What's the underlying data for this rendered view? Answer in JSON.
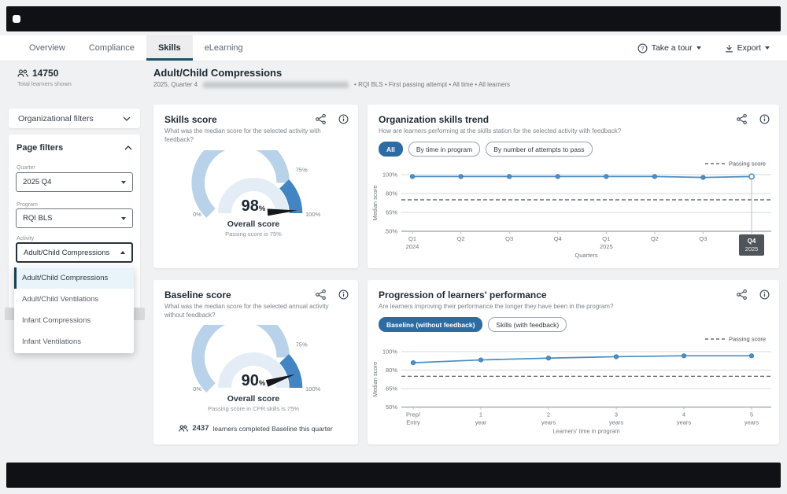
{
  "nav": {
    "tabs": [
      "Overview",
      "Compliance",
      "Skills",
      "eLearning"
    ],
    "active_tab": "Skills",
    "tour_label": "Take a tour",
    "export_label": "Export"
  },
  "stats": {
    "learners_count": "14750",
    "learners_label": "Total learners shown"
  },
  "sidebar": {
    "org_filters_label": "Organizational filters",
    "page_filters": {
      "title": "Page filters",
      "quarter": {
        "label": "Quarter",
        "value": "2025 Q4"
      },
      "program": {
        "label": "Program",
        "value": "RQI BLS"
      },
      "activity": {
        "label": "Activity",
        "value": "Adult/Child Compressions",
        "options": [
          "Adult/Child Compressions",
          "Adult/Child Ventilations",
          "Infant Compressions",
          "Infant Ventilations"
        ],
        "selected_option": "Adult/Child Compressions"
      }
    }
  },
  "header": {
    "title": "Adult/Child Compressions",
    "subtitle_prefix": "2025, Quarter 4",
    "subtitle_suffix": "• RQI BLS • First passing attempt • All time • All learners"
  },
  "cards": {
    "skills_score": {
      "title": "Skills score",
      "subtitle": "What was the median score for the selected activity with feedback?"
    },
    "org_trend": {
      "title": "Organization skills trend",
      "subtitle": "How are learners performing at the skills station for the selected activity with feedback?",
      "pills": [
        "All",
        "By time in program",
        "By number of attempts to pass"
      ],
      "active_pill": "All"
    },
    "baseline_score": {
      "title": "Baseline score",
      "subtitle": "What was the median score for the selected annual activity without feedback?",
      "footnote_count": "2437",
      "footnote_text": "learners completed Baseline this quarter"
    },
    "progression": {
      "title": "Progression of learners' performance",
      "subtitle": "Are learners improving their performance the longer they have been in the program?",
      "pills": [
        "Baseline (without feedback)",
        "Skills (with feedback)"
      ],
      "active_pill": "Baseline (without feedback)"
    }
  },
  "chart_data": [
    {
      "id": "skills-gauge",
      "type": "gauge",
      "value": 98,
      "value_label": "98",
      "unit": "%",
      "min": 0,
      "max": 100,
      "passing": 75,
      "labels": {
        "min": "0%",
        "passing": "75%",
        "max": "100%"
      },
      "center_title": "Overall score",
      "note": "Passing score is 75%"
    },
    {
      "id": "org-trend",
      "type": "line",
      "title": "Organization skills trend",
      "x_categories": [
        [
          "Q1",
          "2024"
        ],
        [
          "Q2",
          ""
        ],
        [
          "Q3",
          ""
        ],
        [
          "Q4",
          ""
        ],
        [
          "Q1",
          "2025"
        ],
        [
          "Q2",
          ""
        ],
        [
          "Q3",
          ""
        ],
        [
          "Q4",
          "2025"
        ]
      ],
      "values": [
        98,
        98,
        98,
        98,
        98,
        98,
        97,
        98
      ],
      "y_ticks": [
        "100%",
        "80%",
        "65%",
        "50%"
      ],
      "y_tick_values": [
        100,
        80,
        65,
        50
      ],
      "passing_value": 75,
      "ylabel": "Median score",
      "xlabel": "Quarters",
      "legend": "Passing score",
      "highlight_last": true
    },
    {
      "id": "baseline-gauge",
      "type": "gauge",
      "value": 90,
      "value_label": "90",
      "unit": "%",
      "min": 0,
      "max": 100,
      "passing": 75,
      "labels": {
        "min": "0%",
        "passing": "75%",
        "max": "100%"
      },
      "center_title": "Overall score",
      "note": "Passing score in CPR skills is 75%"
    },
    {
      "id": "progression",
      "type": "line",
      "title": "Progression of learners' performance",
      "x_categories": [
        [
          "Prep/",
          "Entry"
        ],
        [
          "1",
          "year"
        ],
        [
          "2",
          "years"
        ],
        [
          "3",
          "years"
        ],
        [
          "4",
          "years"
        ],
        [
          "5",
          "years"
        ]
      ],
      "values": [
        88,
        91,
        93,
        94.5,
        95.5,
        95.5
      ],
      "y_ticks": [
        "100%",
        "80%",
        "65%",
        "50%"
      ],
      "y_tick_values": [
        100,
        80,
        65,
        50
      ],
      "passing_value": 75,
      "ylabel": "Median score",
      "xlabel": "Learners' time in program",
      "legend": "Passing score",
      "highlight_last": false
    }
  ],
  "colors": {
    "accent_blue": "#2d6ca2",
    "line_blue": "#4a8ec2",
    "gauge_light": "#b7d2e9",
    "gauge_dark": "#4285c2",
    "badge_dark": "#4f545a",
    "tab_underline": "#1d5368"
  }
}
